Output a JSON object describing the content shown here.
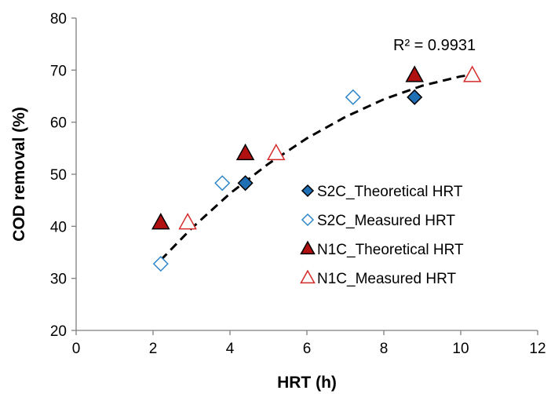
{
  "chart_data": {
    "type": "scatter",
    "xlabel": "HRT (h)",
    "ylabel": "COD removal (%)",
    "xlim": [
      0,
      12
    ],
    "ylim": [
      20,
      80
    ],
    "xticks": [
      0,
      2,
      4,
      6,
      8,
      10,
      12
    ],
    "yticks": [
      20,
      30,
      40,
      50,
      60,
      70,
      80
    ],
    "grid": false,
    "legend_position": "right",
    "series": [
      {
        "name": "S2C_Theoretical HRT",
        "marker": "diamond",
        "filled": true,
        "color": "#1f6fb5",
        "points": [
          [
            4.4,
            48.3
          ],
          [
            8.8,
            64.8
          ]
        ]
      },
      {
        "name": "S2C_Measured HRT",
        "marker": "diamond",
        "filled": false,
        "color": "#2e86c8",
        "points": [
          [
            2.2,
            32.8
          ],
          [
            3.8,
            48.3
          ],
          [
            7.2,
            64.8
          ]
        ]
      },
      {
        "name": "N1C_Theoretical HRT",
        "marker": "triangle",
        "filled": true,
        "color": "#b01010",
        "points": [
          [
            2.2,
            40.7
          ],
          [
            4.4,
            54.0
          ],
          [
            8.8,
            69.0
          ]
        ]
      },
      {
        "name": "N1C_Measured HRT",
        "marker": "triangle",
        "filled": false,
        "color": "#d42a2a",
        "points": [
          [
            2.9,
            40.7
          ],
          [
            5.2,
            54.0
          ],
          [
            10.3,
            69.0
          ]
        ]
      }
    ],
    "trendline": {
      "type": "polynomial",
      "style": "dashed",
      "color": "#000000",
      "x_range": [
        2.2,
        10.3
      ],
      "points": [
        [
          2.2,
          33.5
        ],
        [
          3.0,
          39.6
        ],
        [
          4.0,
          46.3
        ],
        [
          5.0,
          52.0
        ],
        [
          6.0,
          56.9
        ],
        [
          7.0,
          61.0
        ],
        [
          8.0,
          64.4
        ],
        [
          9.0,
          67.0
        ],
        [
          10.0,
          68.8
        ],
        [
          10.3,
          69.1
        ]
      ]
    },
    "annotations": [
      {
        "text": "R² = 0.9931"
      }
    ]
  }
}
